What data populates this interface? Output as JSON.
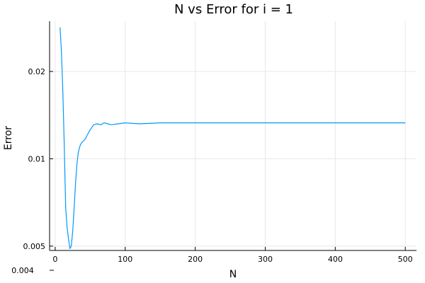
{
  "chart_data": {
    "type": "line",
    "title": "N vs Error for i = 1",
    "xlabel": "N",
    "ylabel": "Error",
    "xlim": [
      -8,
      516
    ],
    "ylim": [
      0.00483,
      0.0298
    ],
    "yscale": "log",
    "grid": true,
    "legend": "none",
    "xticks": [
      {
        "value": 0,
        "label": "0"
      },
      {
        "value": 100,
        "label": "100"
      },
      {
        "value": 200,
        "label": "200"
      },
      {
        "value": 300,
        "label": "300"
      },
      {
        "value": 400,
        "label": "400"
      },
      {
        "value": 500,
        "label": "500"
      }
    ],
    "yticks": [
      {
        "value": 0.005,
        "label": "0.005"
      },
      {
        "value": 0.01,
        "label": "0.01"
      },
      {
        "value": 0.02,
        "label": "0.02"
      }
    ],
    "extra_label": "0.004",
    "series": [
      {
        "color": "#009af9",
        "x": [
          7,
          9,
          11,
          13,
          15,
          17,
          19,
          21,
          23,
          25,
          27,
          29,
          31,
          33,
          35,
          37,
          40,
          43,
          46,
          50,
          55,
          60,
          65,
          70,
          75,
          80,
          90,
          100,
          120,
          150,
          200,
          250,
          300,
          350,
          400,
          450,
          500
        ],
        "y": [
          0.0284,
          0.0232,
          0.0168,
          0.0109,
          0.0068,
          0.0058,
          0.0053,
          0.0049,
          0.005,
          0.0056,
          0.0067,
          0.0082,
          0.0096,
          0.0105,
          0.011,
          0.0113,
          0.0115,
          0.0117,
          0.0121,
          0.0126,
          0.0131,
          0.0132,
          0.0131,
          0.0133,
          0.0132,
          0.0131,
          0.0132,
          0.0133,
          0.0132,
          0.0133,
          0.0133,
          0.0133,
          0.0133,
          0.0133,
          0.0133,
          0.0133,
          0.0133
        ]
      }
    ]
  }
}
